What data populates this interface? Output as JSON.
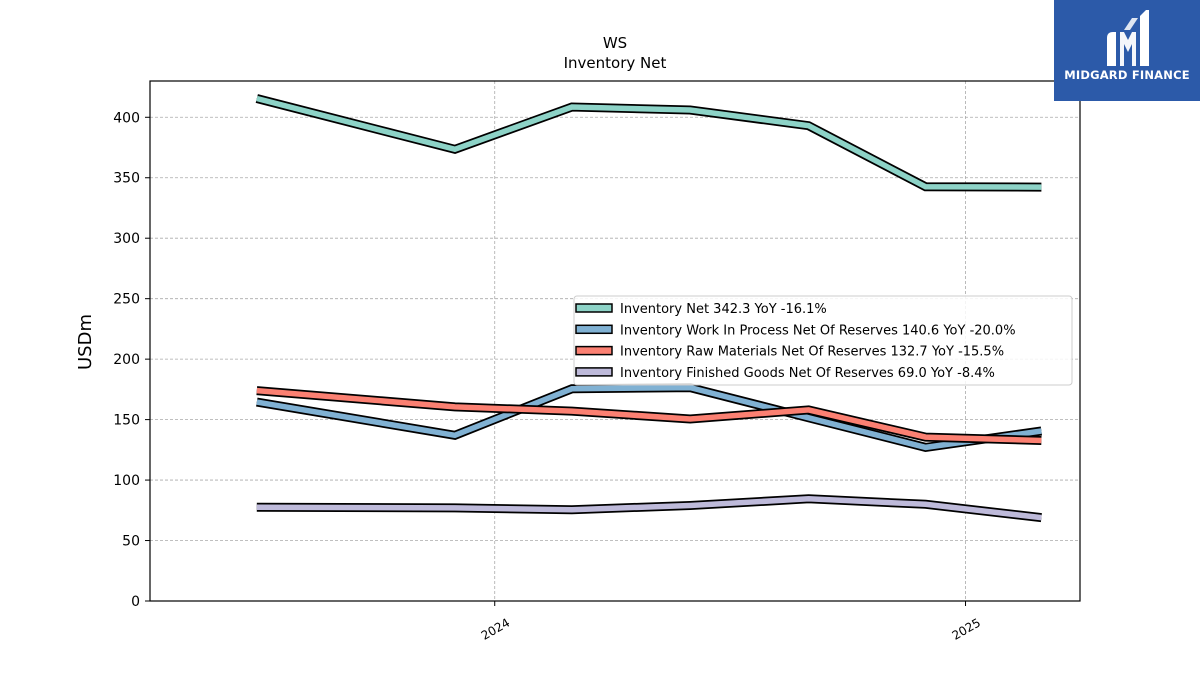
{
  "chart_data": {
    "type": "line",
    "title": "WS",
    "subtitle": "Inventory Net",
    "xlabel": "",
    "ylabel": "USDm",
    "ylim": [
      0,
      430
    ],
    "yticks": [
      0,
      50,
      100,
      150,
      200,
      250,
      300,
      350,
      400
    ],
    "xlim": [
      "2023-04-08",
      "2025-03-31"
    ],
    "xticks": [
      {
        "date": "2024-01-01",
        "label": "2024"
      },
      {
        "date": "2025-01-01",
        "label": "2025"
      }
    ],
    "grid": true,
    "legend_position": "center-right",
    "x": [
      "2023-06-30",
      "2023-12-01",
      "2024-03-01",
      "2024-06-01",
      "2024-09-01",
      "2024-12-01",
      "2025-03-01"
    ],
    "series": [
      {
        "name": "Inventory Net",
        "legend": "Inventory Net  342.3 YoY -16.1%",
        "color": "#8dd3c7",
        "values": [
          415.5,
          373.5,
          408.5,
          406.0,
          393.0,
          342.5,
          342.3
        ]
      },
      {
        "name": "Inventory Work In Process Net Of Reserves",
        "legend": "Inventory Work In Process Net Of Reserves  140.6 YoY -20.0%",
        "color": "#80b1d3",
        "values": [
          164.5,
          137.0,
          175.5,
          176.5,
          151.5,
          127.0,
          140.6
        ]
      },
      {
        "name": "Inventory Raw Materials Net Of Reserves",
        "legend": "Inventory Raw Materials Net Of Reserves  132.7 YoY -15.5%",
        "color": "#fb8072",
        "values": [
          174.0,
          160.5,
          157.0,
          150.5,
          158.0,
          135.5,
          132.7
        ]
      },
      {
        "name": "Inventory Finished Goods Net Of Reserves",
        "legend": "Inventory Finished Goods Net Of Reserves  69.0 YoY -8.4%",
        "color": "#bebada",
        "values": [
          77.5,
          77.0,
          75.5,
          79.0,
          84.5,
          80.0,
          69.0
        ]
      }
    ]
  },
  "logo": {
    "text": "MIDGARD FINANCE"
  }
}
